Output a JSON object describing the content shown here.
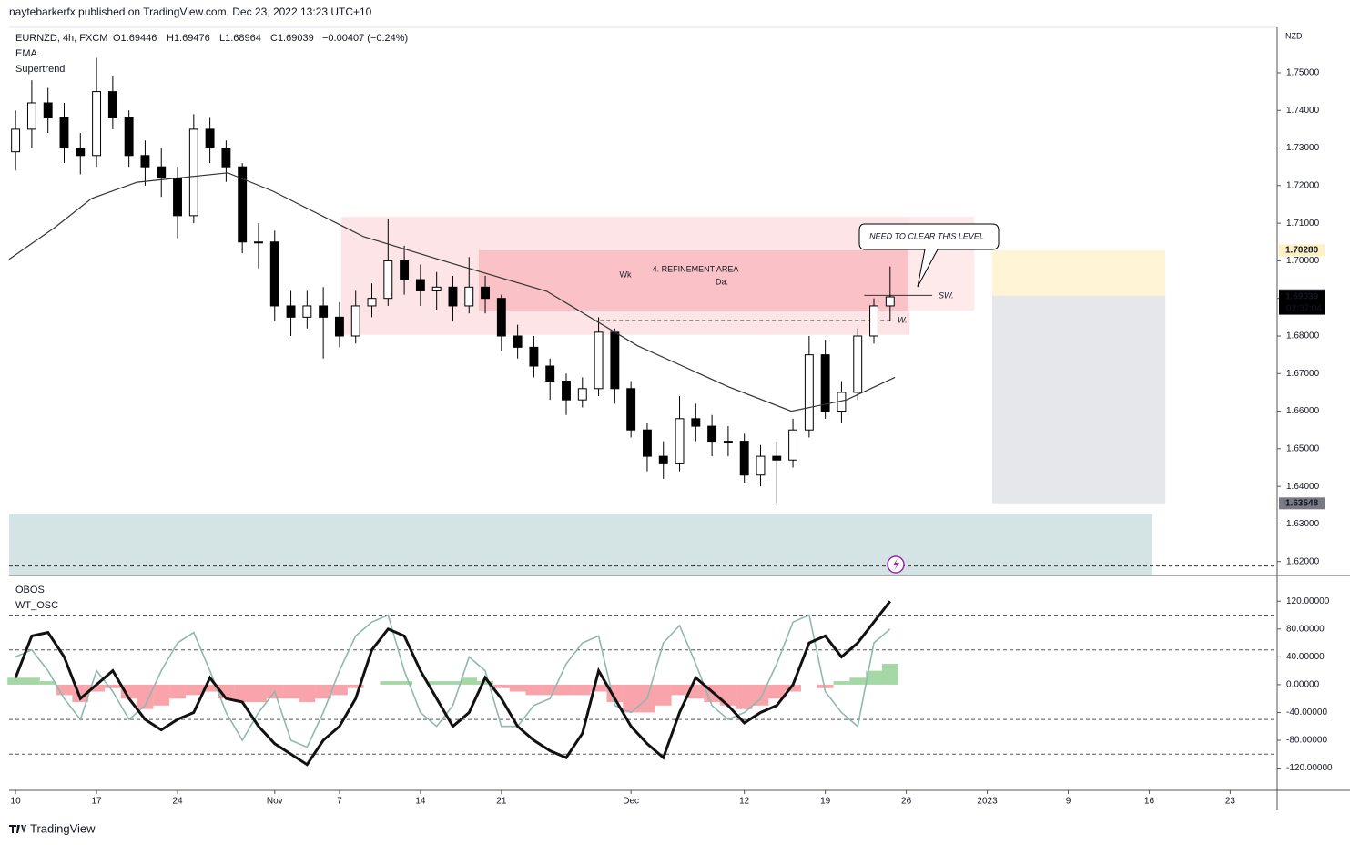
{
  "header": {
    "title": "naytebarkerfx published on TradingView.com, Dec 23, 2022 13:23 UTC+10"
  },
  "footer": {
    "brand": "TradingView"
  },
  "chart_data": [
    {
      "type": "candlestick",
      "symbol": "EURNZD, 4h, FXCM",
      "ohlc": [
        "O1.69446",
        "H1.69476",
        "L1.68964",
        "C1.69039"
      ],
      "change": "−0.00407 (−0.24%)",
      "indicators": [
        "EMA",
        "Supertrend"
      ],
      "currency": "NZD",
      "x": [
        0,
        1,
        2,
        3,
        4,
        5,
        6,
        7,
        8,
        9,
        10,
        11,
        12,
        13,
        14,
        15,
        16,
        17,
        18,
        19,
        20,
        21,
        22,
        23,
        24,
        25,
        26,
        27,
        28,
        29,
        30,
        31,
        32,
        33,
        34,
        35,
        36,
        37,
        38,
        39,
        40,
        41,
        42,
        43,
        44,
        45,
        46,
        47,
        48,
        49,
        50,
        51,
        52,
        53,
        54
      ],
      "open": [
        1.729,
        1.735,
        1.742,
        1.738,
        1.73,
        1.728,
        1.745,
        1.738,
        1.728,
        1.725,
        1.722,
        1.712,
        1.735,
        1.73,
        1.725,
        1.705,
        1.705,
        1.688,
        1.685,
        1.688,
        1.685,
        1.68,
        1.688,
        1.69,
        1.7,
        1.695,
        1.692,
        1.693,
        1.688,
        1.693,
        1.69,
        1.68,
        1.677,
        1.672,
        1.668,
        1.663,
        1.666,
        1.681,
        1.666,
        1.655,
        1.648,
        1.646,
        1.658,
        1.656,
        1.652,
        1.652,
        1.643,
        1.648,
        1.647,
        1.655,
        1.675,
        1.66,
        1.665,
        1.68,
        1.688
      ],
      "high": [
        1.74,
        1.748,
        1.746,
        1.742,
        1.734,
        1.754,
        1.749,
        1.74,
        1.732,
        1.73,
        1.725,
        1.739,
        1.738,
        1.732,
        1.726,
        1.71,
        1.708,
        1.692,
        1.692,
        1.693,
        1.689,
        1.692,
        1.694,
        1.711,
        1.704,
        1.699,
        1.697,
        1.696,
        1.701,
        1.696,
        1.691,
        1.683,
        1.68,
        1.674,
        1.67,
        1.669,
        1.685,
        1.682,
        1.668,
        1.657,
        1.652,
        1.664,
        1.662,
        1.659,
        1.656,
        1.654,
        1.651,
        1.652,
        1.658,
        1.68,
        1.679,
        1.668,
        1.682,
        1.69,
        1.6985
      ],
      "low": [
        1.724,
        1.73,
        1.734,
        1.726,
        1.723,
        1.725,
        1.735,
        1.725,
        1.72,
        1.717,
        1.706,
        1.71,
        1.726,
        1.721,
        1.702,
        1.698,
        1.684,
        1.68,
        1.682,
        1.674,
        1.677,
        1.678,
        1.685,
        1.688,
        1.691,
        1.688,
        1.687,
        1.684,
        1.686,
        1.686,
        1.676,
        1.674,
        1.669,
        1.663,
        1.659,
        1.661,
        1.664,
        1.662,
        1.653,
        1.644,
        1.642,
        1.644,
        1.652,
        1.648,
        1.648,
        1.641,
        1.64,
        1.6355,
        1.645,
        1.653,
        1.658,
        1.657,
        1.663,
        1.678,
        1.684
      ],
      "close": [
        1.735,
        1.742,
        1.738,
        1.73,
        1.728,
        1.745,
        1.738,
        1.728,
        1.725,
        1.722,
        1.712,
        1.735,
        1.73,
        1.725,
        1.705,
        1.705,
        1.688,
        1.685,
        1.688,
        1.685,
        1.68,
        1.688,
        1.69,
        1.7,
        1.695,
        1.692,
        1.693,
        1.688,
        1.693,
        1.69,
        1.68,
        1.677,
        1.672,
        1.668,
        1.663,
        1.666,
        1.681,
        1.666,
        1.655,
        1.648,
        1.646,
        1.658,
        1.656,
        1.652,
        1.652,
        1.643,
        1.648,
        1.647,
        1.655,
        1.675,
        1.66,
        1.665,
        1.68,
        1.688,
        1.6904
      ],
      "series": [
        {
          "name": "EMA",
          "color": "#333333",
          "x": [
            -0.4,
            2.4,
            4.7,
            7.5,
            13.1,
            15.9,
            21.5,
            27.1,
            32.8,
            38.4,
            44,
            47.9,
            51.3,
            54.3
          ],
          "values": [
            1.7004,
            1.7088,
            1.7166,
            1.7209,
            1.7234,
            1.7185,
            1.7064,
            1.6991,
            1.6919,
            1.6774,
            1.6665,
            1.66,
            1.663,
            1.669
          ]
        }
      ],
      "zones": [
        {
          "x": [
            20.1,
            55.2
          ],
          "y": [
            1.6803,
            1.7117
          ],
          "color": "rgba(242,54,69,0.13)"
        },
        {
          "x": [
            28.6,
            55.1
          ],
          "y": [
            1.6868,
            1.7028
          ],
          "color": "rgba(242,54,69,0.2)"
        },
        {
          "x": [
            55.2,
            59.2
          ],
          "y": [
            1.6868,
            1.7117
          ],
          "color": "rgba(242,54,69,0.11)"
        },
        {
          "x": [
            -0.4,
            70.2
          ],
          "y": [
            1.6163,
            1.6326
          ],
          "color": "rgba(160,196,196,0.45)"
        },
        {
          "x": [
            60.3,
            71
          ],
          "y": [
            1.6907,
            1.7028
          ],
          "color": "rgba(255,236,180,0.55)"
        },
        {
          "x": [
            60.3,
            71
          ],
          "y": [
            1.6355,
            1.6907
          ],
          "color": "rgba(190,196,204,0.4)"
        }
      ],
      "levels": [
        {
          "price": 1.6908,
          "x": [
            52.4,
            56.6
          ],
          "dashed": false
        },
        {
          "price": 1.6841,
          "x": [
            35.7,
            54.2
          ],
          "dashed": true
        },
        {
          "price": 1.6188,
          "x": [
            -0.4,
            77.9
          ],
          "dashed": true
        }
      ],
      "annotations": [
        "4. REFINEMENT AREA",
        "Wk",
        "Da.",
        "SW.",
        "W.",
        "NEED TO CLEAR THIS LEVEL"
      ],
      "price_tags": [
        {
          "value": 1.7028,
          "label": "1.70280",
          "bg": "#fff1c4",
          "fg": "#000000"
        },
        {
          "value": 1.69084,
          "label": "1.69084",
          "bg": "#363a45",
          "fg": "#ffffff"
        },
        {
          "value": 1.69039,
          "label": "1.69039",
          "bg": "#000000",
          "fg": "#ffffff",
          "countdown": "02:37:04"
        },
        {
          "value": 1.63548,
          "label": "1.63548",
          "bg": "#787b86",
          "fg": "#ffffff"
        }
      ],
      "xlim": [
        -0.4,
        77.9
      ],
      "ylim": [
        1.6163,
        1.7621
      ],
      "yticks": [
        {
          "value": 1.75,
          "label": "1.75000"
        },
        {
          "value": 1.74,
          "label": "1.74000"
        },
        {
          "value": 1.73,
          "label": "1.73000"
        },
        {
          "value": 1.72,
          "label": "1.72000"
        },
        {
          "value": 1.71,
          "label": "1.71000"
        },
        {
          "value": 1.7,
          "label": "1.70000"
        },
        {
          "value": 1.69,
          "label": "1.69000"
        },
        {
          "value": 1.68,
          "label": "1.68000"
        },
        {
          "value": 1.67,
          "label": "1.67000"
        },
        {
          "value": 1.66,
          "label": "1.66000"
        },
        {
          "value": 1.65,
          "label": "1.65000"
        },
        {
          "value": 1.64,
          "label": "1.64000"
        },
        {
          "value": 1.63,
          "label": "1.63000"
        },
        {
          "value": 1.62,
          "label": "1.62000"
        }
      ]
    },
    {
      "type": "line",
      "labels": [
        "OBOS",
        "WT_OSC"
      ],
      "x": [
        0,
        1,
        2,
        3,
        4,
        5,
        6,
        7,
        8,
        9,
        10,
        11,
        12,
        13,
        14,
        15,
        16,
        17,
        18,
        19,
        20,
        21,
        22,
        23,
        24,
        25,
        26,
        27,
        28,
        29,
        30,
        31,
        32,
        33,
        34,
        35,
        36,
        37,
        38,
        39,
        40,
        41,
        42,
        43,
        44,
        45,
        46,
        47,
        48,
        49,
        50,
        51,
        52,
        53,
        54
      ],
      "series": [
        {
          "name": "WT2",
          "color": "#8fb8b0",
          "values": [
            40,
            50,
            20,
            -20,
            -50,
            20,
            -10,
            -50,
            -30,
            20,
            60,
            75,
            20,
            -40,
            -80,
            -40,
            -10,
            -80,
            -90,
            -40,
            20,
            70,
            90,
            100,
            20,
            -40,
            -60,
            -30,
            40,
            20,
            -60,
            -60,
            -30,
            -20,
            30,
            60,
            70,
            -30,
            -40,
            -20,
            60,
            85,
            30,
            -30,
            -50,
            -40,
            -20,
            30,
            90,
            100,
            -10,
            -40,
            -60,
            60,
            80
          ]
        },
        {
          "name": "WT1",
          "color": "#111111",
          "values": [
            10,
            70,
            75,
            40,
            -20,
            0,
            20,
            -20,
            -50,
            -65,
            -50,
            -40,
            10,
            -20,
            -25,
            -60,
            -85,
            -100,
            -115,
            -80,
            -60,
            -20,
            50,
            80,
            70,
            20,
            -20,
            -60,
            -40,
            10,
            -20,
            -60,
            -80,
            -95,
            -105,
            -70,
            20,
            -20,
            -60,
            -85,
            -105,
            -40,
            10,
            -10,
            -30,
            -55,
            -40,
            -30,
            0,
            60,
            70,
            40,
            60,
            90,
            120
          ]
        },
        {
          "name": "HIST",
          "color": [
            "rgba(76,175,80,0.5)",
            "rgba(242,54,69,0.45)"
          ],
          "values": [
            10,
            10,
            5,
            -15,
            -25,
            -10,
            -5,
            -20,
            -35,
            -30,
            -20,
            -15,
            -10,
            -20,
            -25,
            -25,
            -20,
            -20,
            -25,
            -20,
            -15,
            -5,
            0,
            5,
            5,
            0,
            5,
            5,
            10,
            5,
            -5,
            -10,
            -15,
            -15,
            -15,
            -15,
            -10,
            -25,
            -40,
            -40,
            -30,
            -15,
            -20,
            -25,
            -30,
            -35,
            -30,
            -20,
            -10,
            0,
            -5,
            5,
            10,
            20,
            30
          ]
        }
      ],
      "levels": [
        100,
        50,
        -50,
        -100
      ],
      "xlim": [
        -0.4,
        77.9
      ],
      "ylim": [
        -152,
        157
      ],
      "yticks": [
        {
          "value": 120,
          "label": "120.00000"
        },
        {
          "value": 80,
          "label": "80.00000"
        },
        {
          "value": 40,
          "label": "40.00000"
        },
        {
          "value": 0,
          "label": "0.00000"
        },
        {
          "value": -40,
          "label": "-40.00000"
        },
        {
          "value": -80,
          "label": "-80.00000"
        },
        {
          "value": -120,
          "label": "-120.00000"
        }
      ],
      "xticks": [
        {
          "value": 0,
          "label": "10"
        },
        {
          "value": 5,
          "label": "17"
        },
        {
          "value": 10,
          "label": "24"
        },
        {
          "value": 16,
          "label": "Nov"
        },
        {
          "value": 20,
          "label": "7"
        },
        {
          "value": 25,
          "label": "14"
        },
        {
          "value": 30,
          "label": "21"
        },
        {
          "value": 38,
          "label": "Dec"
        },
        {
          "value": 45,
          "label": "12"
        },
        {
          "value": 50,
          "label": "19"
        },
        {
          "value": 55,
          "label": "26"
        },
        {
          "value": 60,
          "label": "2023"
        },
        {
          "value": 65,
          "label": "9"
        },
        {
          "value": 70,
          "label": "16"
        },
        {
          "value": 75,
          "label": "23"
        }
      ]
    }
  ]
}
